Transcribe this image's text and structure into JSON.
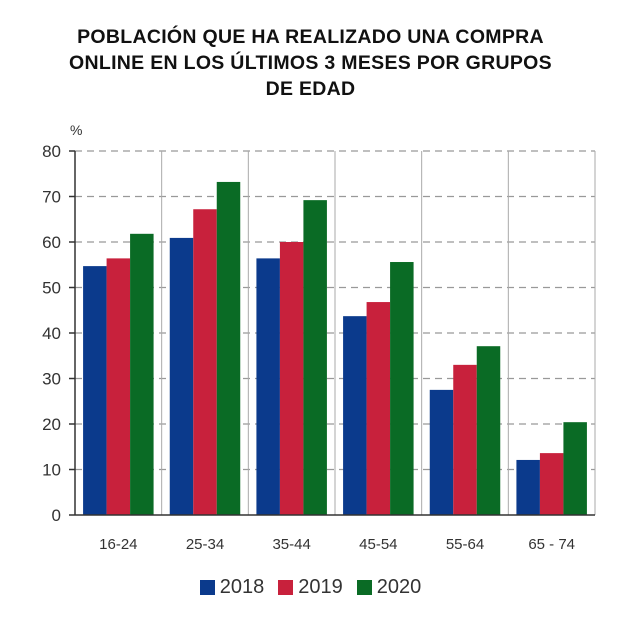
{
  "chart_data": {
    "type": "bar",
    "title_lines": [
      "POBLACIÓN QUE HA REALIZADO UNA COMPRA",
      "ONLINE EN LOS ÚLTIMOS 3 MESES POR GRUPOS",
      "DE EDAD"
    ],
    "ylabel": "%",
    "ylim": [
      0,
      80
    ],
    "yticks": [
      0,
      10,
      20,
      30,
      40,
      50,
      60,
      70,
      80
    ],
    "grid": true,
    "legend_position": "bottom",
    "categories": [
      "16-24",
      "25-34",
      "35-44",
      "45-54",
      "55-64",
      "65 - 74"
    ],
    "series": [
      {
        "name": "2018",
        "color": "#0b3a8c",
        "values": [
          54.7,
          60.9,
          56.4,
          43.7,
          27.5,
          12.1
        ]
      },
      {
        "name": "2019",
        "color": "#c8213c",
        "values": [
          56.4,
          67.2,
          60.0,
          46.8,
          33.0,
          13.6
        ]
      },
      {
        "name": "2020",
        "color": "#0a6b25",
        "values": [
          61.8,
          73.2,
          69.2,
          55.6,
          37.1,
          20.4
        ]
      }
    ]
  }
}
